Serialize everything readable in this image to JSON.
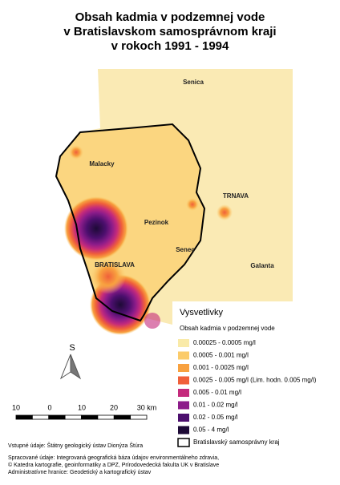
{
  "title": [
    "Obsah kadmia v podzemnej vode",
    "v Bratislavskom samosprávnom kraji",
    "v rokoch 1991 - 1994"
  ],
  "places": [
    "Senica",
    "Malacky",
    "TRNAVA",
    "Pezinok",
    "Senec",
    "BRATISLAVA",
    "Galanta"
  ],
  "north": "S",
  "scale_bar": {
    "labels": [
      "10",
      "0",
      "10",
      "20",
      "30 km"
    ]
  },
  "legend": {
    "title": "Vysvetlivky",
    "subtitle": "Obsah kadmia v podzemnej vode",
    "items": [
      {
        "label": "0.00025 - 0.0005 mg/l",
        "color": "#f9eaa8"
      },
      {
        "label": "0.0005 - 0.001 mg/l",
        "color": "#fbcb6a"
      },
      {
        "label": "0.001 - 0.0025 mg/l",
        "color": "#f8a13f"
      },
      {
        "label": "0.0025 - 0.005 mg/l (Lim. hodn. 0.005 mg/l)",
        "color": "#f0603a"
      },
      {
        "label": "0.005 - 0.01 mg/l",
        "color": "#c42a7c"
      },
      {
        "label": "0.01 - 0.02 mg/l",
        "color": "#8c1c8a"
      },
      {
        "label": "0.02 - 0.05 mg/l",
        "color": "#4c0f6e"
      },
      {
        "label": "0.05 - 4 mg/l",
        "color": "#1d0a36"
      }
    ],
    "boundary": "Bratislavský samosprávny kraj"
  },
  "credits": [
    "Vstupné údaje: Štátny geologický ústav Dionýza Štúra",
    "Spracované údaje: Integrovaná geografická báza údajov environmentálneho zdravia,",
    "© Katedra kartografie, geoinformatiky a DPZ, Prírodovedecká fakulta UK v Bratislave",
    "Administratívne hranice: Geodetický a kartografický ústav"
  ]
}
